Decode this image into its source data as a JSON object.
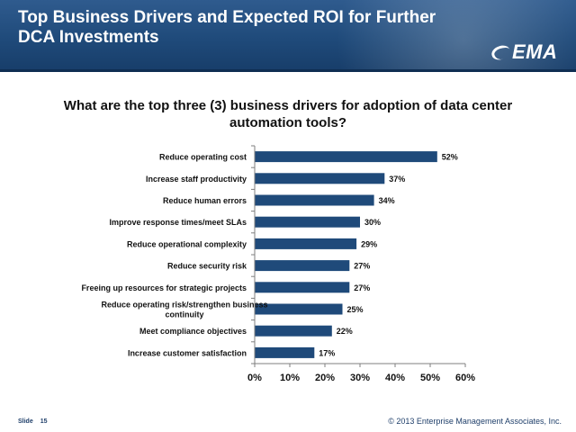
{
  "header": {
    "title": "Top Business Drivers and Expected ROI for Further DCA Investments",
    "logo_text": "EMA"
  },
  "colors": {
    "bar": "#1f4a7a",
    "header": "#1f4a7a"
  },
  "chart_data": {
    "type": "bar",
    "orientation": "horizontal",
    "title": "What are the top three (3) business drivers for adoption of data center automation tools?",
    "categories": [
      [
        "Reduce operating cost"
      ],
      [
        "Increase staff productivity"
      ],
      [
        "Reduce human errors"
      ],
      [
        "Improve response times/meet SLAs"
      ],
      [
        "Reduce operational complexity"
      ],
      [
        "Reduce security risk"
      ],
      [
        "Freeing up resources for strategic projects"
      ],
      [
        "Reduce operating risk/strengthen business",
        "continuity"
      ],
      [
        "Meet compliance objectives"
      ],
      [
        "Increase customer satisfaction"
      ]
    ],
    "values": [
      52,
      37,
      34,
      30,
      29,
      27,
      27,
      25,
      22,
      17
    ],
    "data_labels": [
      "52%",
      "37%",
      "34%",
      "30%",
      "29%",
      "27%",
      "27%",
      "25%",
      "22%",
      "17%"
    ],
    "xlim": [
      0,
      60
    ],
    "xticks": [
      0,
      10,
      20,
      30,
      40,
      50,
      60
    ],
    "xtick_labels": [
      "0%",
      "10%",
      "20%",
      "30%",
      "40%",
      "50%",
      "60%"
    ],
    "grid": false,
    "legend": "none"
  },
  "footer": {
    "slide_label": "Slide",
    "slide_number": "15",
    "copyright": "© 2013 Enterprise Management Associates, Inc."
  }
}
